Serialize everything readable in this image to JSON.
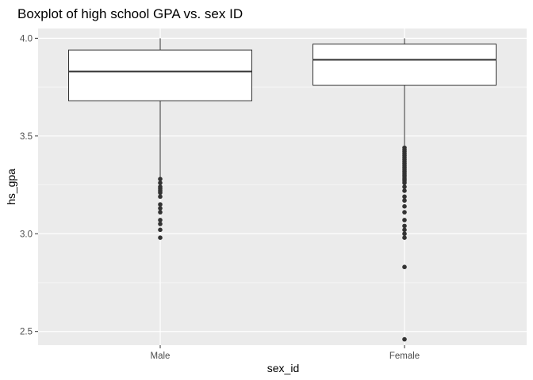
{
  "chart_data": {
    "type": "boxplot",
    "title": "Boxplot of high school GPA vs. sex ID",
    "xlabel": "sex_id",
    "ylabel": "hs_gpa",
    "categories": [
      "Male",
      "Female"
    ],
    "ylim": [
      2.43,
      4.05
    ],
    "y_ticks": [
      2.5,
      3.0,
      3.5,
      4.0
    ],
    "y_tick_labels": [
      "2.5",
      "3.0",
      "3.5",
      "4.0"
    ],
    "grid": true,
    "boxes": [
      {
        "category": "Male",
        "lower_whisker": 3.29,
        "q1": 3.68,
        "median": 3.83,
        "q3": 3.94,
        "upper_whisker": 4.0,
        "outliers": [
          3.28,
          3.26,
          3.24,
          3.23,
          3.22,
          3.21,
          3.19,
          3.15,
          3.13,
          3.11,
          3.07,
          3.05,
          3.02,
          2.98
        ]
      },
      {
        "category": "Female",
        "lower_whisker": 3.45,
        "q1": 3.76,
        "median": 3.89,
        "q3": 3.97,
        "upper_whisker": 4.0,
        "outliers": [
          3.44,
          3.43,
          3.42,
          3.41,
          3.4,
          3.39,
          3.38,
          3.37,
          3.36,
          3.35,
          3.34,
          3.33,
          3.32,
          3.31,
          3.3,
          3.29,
          3.28,
          3.27,
          3.26,
          3.24,
          3.22,
          3.19,
          3.17,
          3.14,
          3.11,
          3.07,
          3.04,
          3.02,
          3.0,
          2.98,
          2.83,
          2.46
        ]
      }
    ],
    "colors": {
      "panel_background": "#ebebeb",
      "grid_major": "#ffffff",
      "grid_minor": "#f7f7f7",
      "box_fill": "#ffffff",
      "box_stroke": "#333333",
      "points": "#333333",
      "tick_label": "#4d4d4d",
      "text": "#000000"
    }
  }
}
